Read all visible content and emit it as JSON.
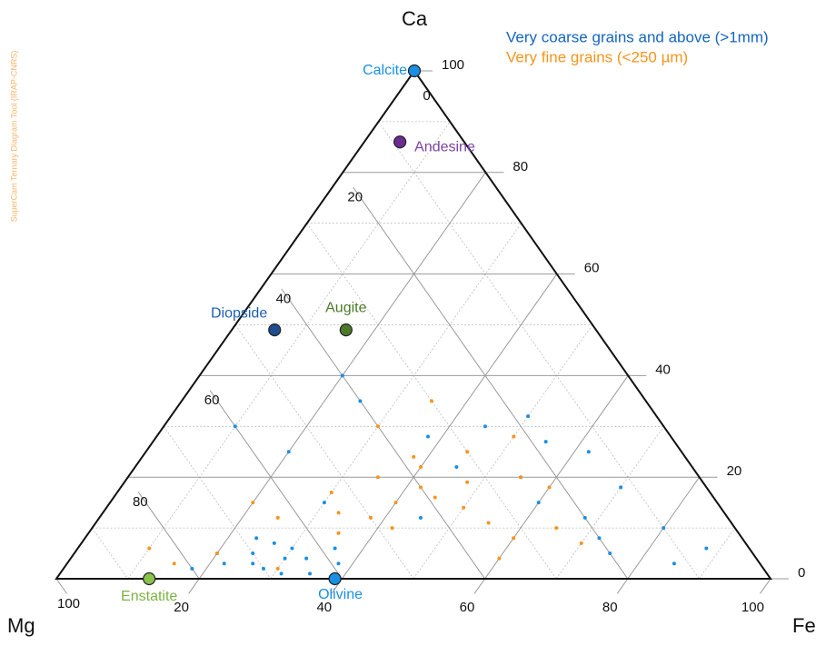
{
  "chart_data": {
    "type": "ternary",
    "watermark": "SuperCam Ternary Diagram Tool (IRAP-CNRS)",
    "vertices": {
      "top": "Ca",
      "left": "Mg",
      "right": "Fe"
    },
    "ticks": {
      "ca": [
        0,
        20,
        40,
        60,
        80,
        100
      ],
      "mg": [
        0,
        20,
        40,
        60,
        80,
        100
      ],
      "fe": [
        20,
        40,
        60,
        80,
        100
      ]
    },
    "minor_ticks": [
      10,
      30,
      50,
      70,
      90
    ],
    "series": [
      {
        "name": "Very coarse grains and above (>1mm)",
        "color": "#1a8fe3",
        "legend_color": "#1565c0",
        "ca": [
          3,
          5,
          2,
          6,
          4,
          1,
          7,
          3,
          5,
          2,
          8,
          4,
          6,
          3,
          1,
          30,
          25,
          35,
          28,
          22,
          32,
          20,
          15,
          12,
          8,
          5,
          10,
          3,
          6,
          18,
          25,
          27,
          40,
          15,
          12,
          30
        ],
        "fe": [
          22,
          25,
          28,
          30,
          33,
          35,
          27,
          38,
          20,
          18,
          24,
          30,
          36,
          26,
          31,
          10,
          20,
          25,
          38,
          45,
          50,
          55,
          60,
          68,
          72,
          75,
          80,
          85,
          88,
          70,
          62,
          55,
          20,
          30,
          45,
          45
        ]
      },
      {
        "name": "Very fine grains (<250 µm)",
        "color": "#f7941d",
        "legend_color": "#f7941d",
        "ca": [
          15,
          18,
          12,
          16,
          20,
          14,
          10,
          17,
          22,
          13,
          19,
          11,
          25,
          8,
          9,
          24,
          30,
          35,
          12,
          5,
          3,
          6,
          15,
          20,
          28,
          18,
          10,
          4,
          7,
          2
        ],
        "fe": [
          40,
          42,
          38,
          45,
          35,
          50,
          42,
          30,
          40,
          33,
          48,
          55,
          45,
          60,
          35,
          38,
          30,
          35,
          25,
          20,
          15,
          10,
          20,
          55,
          50,
          60,
          65,
          60,
          70,
          30
        ]
      }
    ],
    "references": [
      {
        "name": "Calcite",
        "ca": 100,
        "fe": 0,
        "color": "#1a8fe3",
        "label_color": "#1a8fe3"
      },
      {
        "name": "Andesine",
        "ca": 86,
        "fe": 5,
        "color": "#6a2c91",
        "label_color": "#7b3fa5"
      },
      {
        "name": "Diopside",
        "ca": 49,
        "fe": 6,
        "color": "#1f4e8c",
        "label_color": "#1f5fb0"
      },
      {
        "name": "Augite",
        "ca": 49,
        "fe": 16,
        "color": "#4a7a2a",
        "label_color": "#4a7a2a"
      },
      {
        "name": "Enstatite",
        "ca": 0,
        "fe": 13,
        "color": "#8bc34a",
        "label_color": "#7cb342"
      },
      {
        "name": "Olivine",
        "ca": 0,
        "fe": 39,
        "color": "#1a8fe3",
        "label_color": "#1a8fe3"
      }
    ]
  }
}
